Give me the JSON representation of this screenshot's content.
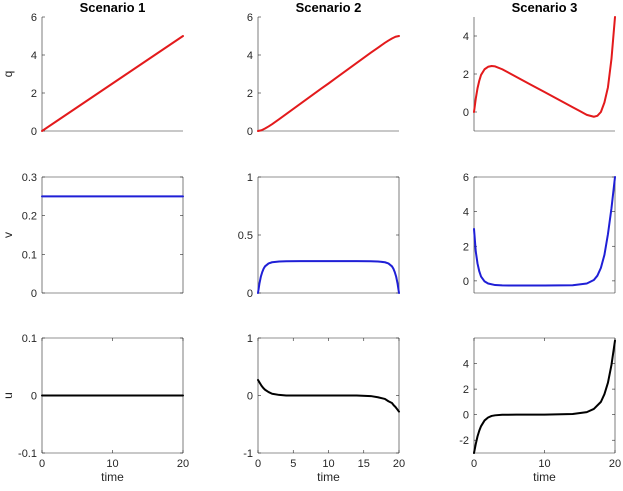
{
  "chart_data": [
    {
      "type": "line",
      "title": "Scenario 1",
      "xlabel": "",
      "ylabel": "q",
      "xlim": [
        0,
        20
      ],
      "ylim": [
        0,
        6
      ],
      "xticks": [],
      "yticks": [
        0,
        2,
        4,
        6
      ],
      "ytick_labels": [
        "0",
        "2",
        "4",
        "6"
      ],
      "box": false,
      "series": [
        {
          "name": "q",
          "color": "#e31a1c",
          "x": [
            0,
            2,
            4,
            6,
            8,
            10,
            12,
            14,
            16,
            18,
            20
          ],
          "y": [
            0,
            0.5,
            1,
            1.5,
            2,
            2.5,
            3,
            3.5,
            4,
            4.5,
            5
          ]
        }
      ]
    },
    {
      "type": "line",
      "title": "Scenario 2",
      "xlabel": "",
      "ylabel": "",
      "xlim": [
        0,
        20
      ],
      "ylim": [
        0,
        6
      ],
      "xticks": [],
      "yticks": [
        0,
        2,
        4,
        6
      ],
      "ytick_labels": [
        "0",
        "2",
        "4",
        "6"
      ],
      "box": false,
      "series": [
        {
          "name": "q",
          "color": "#e31a1c",
          "x": [
            0,
            0.5,
            1,
            1.5,
            2,
            3,
            4,
            5,
            6,
            7,
            8,
            9,
            10,
            11,
            12,
            13,
            14,
            15,
            16,
            17,
            18,
            18.5,
            19,
            19.5,
            20
          ],
          "y": [
            0,
            0.04,
            0.13,
            0.24,
            0.36,
            0.62,
            0.89,
            1.16,
            1.43,
            1.7,
            1.97,
            2.24,
            2.5,
            2.77,
            3.04,
            3.31,
            3.58,
            3.85,
            4.12,
            4.38,
            4.64,
            4.76,
            4.87,
            4.96,
            5.0
          ]
        }
      ]
    },
    {
      "type": "line",
      "title": "Scenario 3",
      "xlabel": "",
      "ylabel": "",
      "xlim": [
        0,
        20
      ],
      "ylim": [
        -1,
        5
      ],
      "xticks": [],
      "yticks": [
        0,
        2,
        4
      ],
      "ytick_labels": [
        "0",
        "2",
        "4"
      ],
      "box": false,
      "series": [
        {
          "name": "q",
          "color": "#e31a1c",
          "x": [
            0,
            0.25,
            0.5,
            0.75,
            1,
            1.5,
            2,
            2.5,
            3,
            4,
            6,
            8,
            10,
            12,
            14,
            15,
            16,
            17,
            17.5,
            18,
            18.5,
            19,
            19.5,
            20
          ],
          "y": [
            0,
            0.7,
            1.25,
            1.65,
            1.95,
            2.25,
            2.38,
            2.42,
            2.4,
            2.25,
            1.85,
            1.45,
            1.05,
            0.65,
            0.25,
            0.05,
            -0.15,
            -0.25,
            -0.2,
            0.0,
            0.5,
            1.3,
            2.8,
            5.0
          ]
        }
      ]
    },
    {
      "type": "line",
      "title": "",
      "xlabel": "",
      "ylabel": "v",
      "xlim": [
        0,
        20
      ],
      "ylim": [
        0,
        0.3
      ],
      "xticks": [],
      "yticks": [
        0,
        0.1,
        0.2,
        0.3
      ],
      "ytick_labels": [
        "0",
        "0.1",
        "0.2",
        "0.3"
      ],
      "box": true,
      "series": [
        {
          "name": "v",
          "color": "#1f1fd6",
          "x": [
            0,
            20
          ],
          "y": [
            0.25,
            0.25
          ]
        }
      ]
    },
    {
      "type": "line",
      "title": "",
      "xlabel": "",
      "ylabel": "",
      "xlim": [
        0,
        20
      ],
      "ylim": [
        0,
        1
      ],
      "xticks": [],
      "yticks": [
        0,
        0.5,
        1
      ],
      "ytick_labels": [
        "0",
        "0.5",
        "1"
      ],
      "box": true,
      "series": [
        {
          "name": "v",
          "color": "#1f1fd6",
          "x": [
            0,
            0.2,
            0.4,
            0.6,
            0.8,
            1,
            1.5,
            2,
            3,
            4,
            6,
            10,
            14,
            16,
            17,
            18,
            18.5,
            19,
            19.2,
            19.4,
            19.6,
            19.8,
            20
          ],
          "y": [
            0,
            0.08,
            0.14,
            0.18,
            0.21,
            0.23,
            0.255,
            0.265,
            0.272,
            0.274,
            0.275,
            0.275,
            0.275,
            0.274,
            0.272,
            0.265,
            0.255,
            0.23,
            0.21,
            0.18,
            0.14,
            0.08,
            0
          ]
        }
      ]
    },
    {
      "type": "line",
      "title": "",
      "xlabel": "",
      "ylabel": "",
      "xlim": [
        0,
        20
      ],
      "ylim": [
        -0.7,
        6
      ],
      "xticks": [],
      "yticks": [
        0,
        2,
        4,
        6
      ],
      "ytick_labels": [
        "0",
        "2",
        "4",
        "6"
      ],
      "box": true,
      "series": [
        {
          "name": "v",
          "color": "#1f1fd6",
          "x": [
            0,
            0.25,
            0.5,
            0.75,
            1,
            1.5,
            2,
            3,
            4,
            6,
            10,
            14,
            16,
            17,
            17.5,
            18,
            18.5,
            19,
            19.5,
            20
          ],
          "y": [
            3.0,
            1.7,
            1.0,
            0.55,
            0.25,
            -0.03,
            -0.15,
            -0.24,
            -0.26,
            -0.27,
            -0.27,
            -0.25,
            -0.15,
            0.05,
            0.3,
            0.75,
            1.5,
            2.7,
            4.2,
            6.0
          ]
        }
      ]
    },
    {
      "type": "line",
      "title": "",
      "xlabel": "time",
      "ylabel": "u",
      "xlim": [
        0,
        20
      ],
      "ylim": [
        -0.1,
        0.1
      ],
      "xticks": [
        0,
        10,
        20
      ],
      "xtick_labels": [
        "0",
        "10",
        "20"
      ],
      "yticks": [
        -0.1,
        0,
        0.1
      ],
      "ytick_labels": [
        "-0.1",
        "0",
        "0.1"
      ],
      "box": true,
      "series": [
        {
          "name": "u",
          "color": "#000000",
          "x": [
            0,
            20
          ],
          "y": [
            0,
            0
          ]
        }
      ]
    },
    {
      "type": "line",
      "title": "",
      "xlabel": "time",
      "ylabel": "",
      "xlim": [
        0,
        20
      ],
      "ylim": [
        -1,
        1
      ],
      "xticks": [
        0,
        5,
        10,
        15,
        20
      ],
      "xtick_labels": [
        "0",
        "5",
        "10",
        "15",
        "20"
      ],
      "yticks": [
        -1,
        0,
        1
      ],
      "ytick_labels": [
        "-1",
        "0",
        "1"
      ],
      "box": true,
      "series": [
        {
          "name": "u",
          "color": "#000000",
          "x": [
            0,
            0.25,
            0.5,
            0.75,
            1,
            1.5,
            2,
            3,
            4,
            6,
            10,
            14,
            16,
            17,
            18,
            18.5,
            19,
            19.25,
            19.5,
            19.75,
            20
          ],
          "y": [
            0.27,
            0.22,
            0.17,
            0.13,
            0.1,
            0.06,
            0.03,
            0.01,
            0.0,
            0.0,
            0.0,
            0.0,
            -0.01,
            -0.03,
            -0.06,
            -0.1,
            -0.13,
            -0.17,
            -0.2,
            -0.24,
            -0.28
          ]
        }
      ]
    },
    {
      "type": "line",
      "title": "",
      "xlabel": "time",
      "ylabel": "",
      "xlim": [
        0,
        20
      ],
      "ylim": [
        -3,
        6
      ],
      "xticks": [
        0,
        10,
        20
      ],
      "xtick_labels": [
        "0",
        "10",
        "20"
      ],
      "yticks": [
        -2,
        0,
        2,
        4
      ],
      "ytick_labels": [
        "-2",
        "0",
        "2",
        "4"
      ],
      "box": true,
      "series": [
        {
          "name": "u",
          "color": "#000000",
          "x": [
            0,
            0.25,
            0.5,
            0.75,
            1,
            1.5,
            2,
            2.5,
            3,
            4,
            6,
            10,
            14,
            16,
            17,
            18,
            18.5,
            19,
            19.5,
            20
          ],
          "y": [
            -3.0,
            -2.3,
            -1.7,
            -1.25,
            -0.9,
            -0.45,
            -0.22,
            -0.1,
            -0.05,
            -0.01,
            0.0,
            0.0,
            0.05,
            0.2,
            0.45,
            1.0,
            1.6,
            2.5,
            3.9,
            5.8
          ]
        }
      ]
    }
  ]
}
